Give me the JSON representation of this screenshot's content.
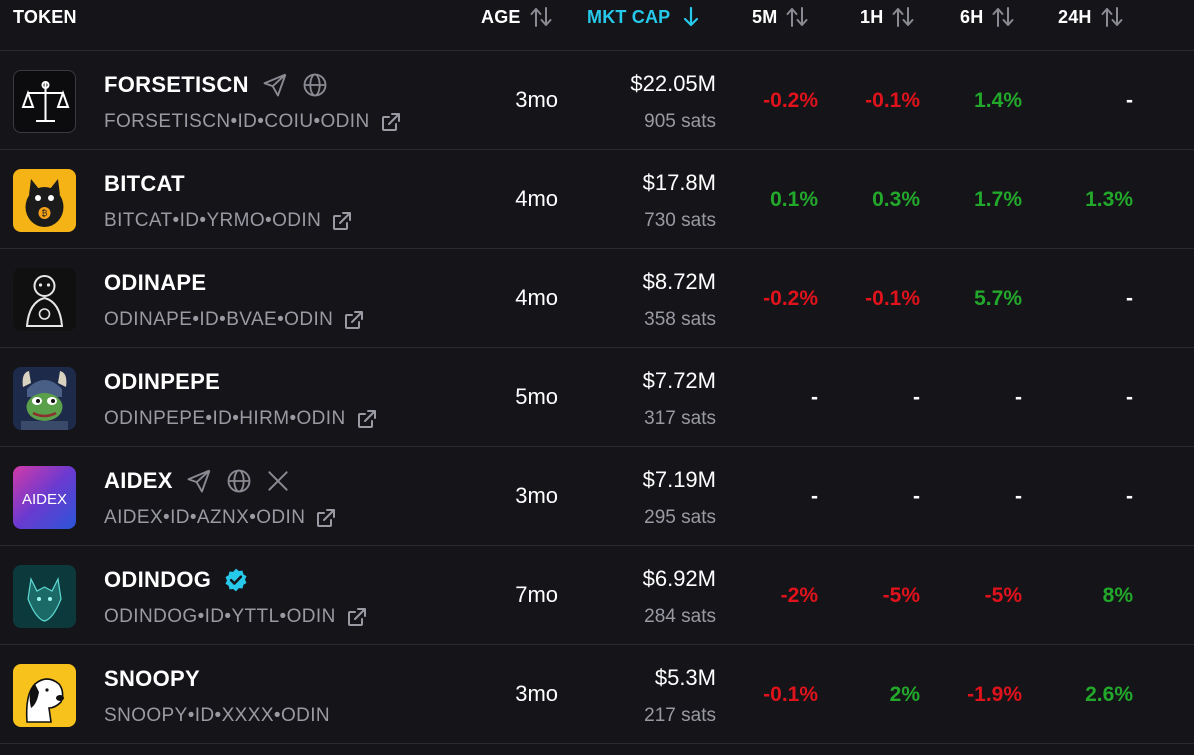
{
  "header": {
    "token": "TOKEN",
    "age": "AGE",
    "mkt_cap": "MKT CAP",
    "m5": "5M",
    "h1": "1H",
    "h6": "6H",
    "h24": "24H",
    "active_color": "#27c9ea"
  },
  "rows": [
    {
      "name": "FORSETISCN",
      "id": "FORSETISCN•ID•COIU•ODIN",
      "age": "3mo",
      "mcap": "$22.05M",
      "sats": "905 sats",
      "m5": "-0.2%",
      "h1": "-0.1%",
      "h6": "1.4%",
      "h24": "-",
      "icons": [
        "telegram-icon",
        "globe-icon"
      ]
    },
    {
      "name": "BITCAT",
      "id": "BITCAT•ID•YRMO•ODIN",
      "age": "4mo",
      "mcap": "$17.8M",
      "sats": "730 sats",
      "m5": "0.1%",
      "h1": "0.3%",
      "h6": "1.7%",
      "h24": "1.3%",
      "icons": []
    },
    {
      "name": "ODINAPE",
      "id": "ODINAPE•ID•BVAE•ODIN",
      "age": "4mo",
      "mcap": "$8.72M",
      "sats": "358 sats",
      "m5": "-0.2%",
      "h1": "-0.1%",
      "h6": "5.7%",
      "h24": "-",
      "icons": []
    },
    {
      "name": "ODINPEPE",
      "id": "ODINPEPE•ID•HIRM•ODIN",
      "age": "5mo",
      "mcap": "$7.72M",
      "sats": "317 sats",
      "m5": "-",
      "h1": "-",
      "h6": "-",
      "h24": "-",
      "icons": []
    },
    {
      "name": "AIDEX",
      "id": "AIDEX•ID•AZNX•ODIN",
      "age": "3mo",
      "mcap": "$7.19M",
      "sats": "295 sats",
      "m5": "-",
      "h1": "-",
      "h6": "-",
      "h24": "-",
      "icons": [
        "telegram-icon",
        "globe-icon",
        "x-icon"
      ],
      "logo_text": "AIDEX"
    },
    {
      "name": "ODINDOG",
      "id": "ODINDOG•ID•YTTL•ODIN",
      "age": "7mo",
      "mcap": "$6.92M",
      "sats": "284 sats",
      "m5": "-2%",
      "h1": "-5%",
      "h6": "-5%",
      "h24": "8%",
      "icons": [
        "verified-icon"
      ]
    },
    {
      "name": "SNOOPY",
      "id": "SNOOPY•ID•XXXX•ODIN",
      "age": "3mo",
      "mcap": "$5.3M",
      "sats": "217 sats",
      "m5": "-0.1%",
      "h1": "2%",
      "h6": "-1.9%",
      "h24": "2.6%",
      "icons": []
    }
  ],
  "colors": {
    "negative": "#e0121b",
    "positive": "#22a82a",
    "muted": "#9a9aa3"
  }
}
